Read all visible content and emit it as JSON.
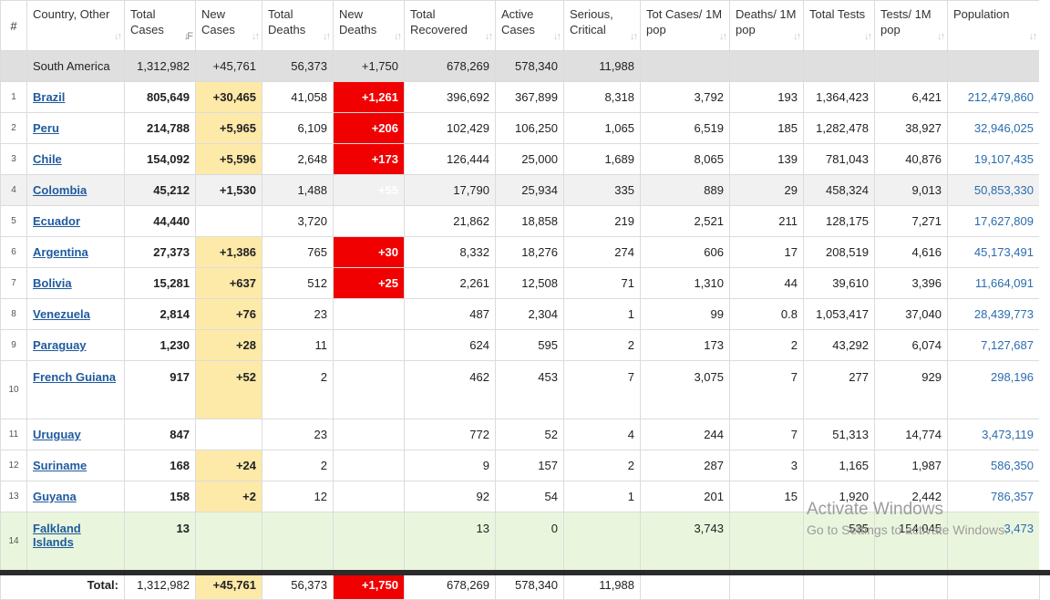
{
  "headers": {
    "idx": "#",
    "country": "Country, Other",
    "total_cases": "Total Cases",
    "new_cases": "New Cases",
    "total_deaths": "Total Deaths",
    "new_deaths": "New Deaths",
    "total_recovered": "Total Recovered",
    "active_cases": "Active Cases",
    "serious": "Serious, Critical",
    "tot_cases_1m": "Tot Cases/ 1M pop",
    "deaths_1m": "Deaths/ 1M pop",
    "total_tests": "Total Tests",
    "tests_1m": "Tests/ 1M pop",
    "population": "Population"
  },
  "region": {
    "name": "South America",
    "total_cases": "1,312,982",
    "new_cases": "+45,761",
    "total_deaths": "56,373",
    "new_deaths": "+1,750",
    "total_recovered": "678,269",
    "active_cases": "578,340",
    "serious": "11,988"
  },
  "rows": [
    {
      "idx": "1",
      "country": "Brazil",
      "total_cases": "805,649",
      "new_cases": "+30,465",
      "total_deaths": "41,058",
      "new_deaths": "+1,261",
      "total_recovered": "396,692",
      "active_cases": "367,899",
      "serious": "8,318",
      "tot_cases_1m": "3,792",
      "deaths_1m": "193",
      "total_tests": "1,364,423",
      "tests_1m": "6,421",
      "population": "212,479,860"
    },
    {
      "idx": "2",
      "country": "Peru",
      "total_cases": "214,788",
      "new_cases": "+5,965",
      "total_deaths": "6,109",
      "new_deaths": "+206",
      "total_recovered": "102,429",
      "active_cases": "106,250",
      "serious": "1,065",
      "tot_cases_1m": "6,519",
      "deaths_1m": "185",
      "total_tests": "1,282,478",
      "tests_1m": "38,927",
      "population": "32,946,025"
    },
    {
      "idx": "3",
      "country": "Chile",
      "total_cases": "154,092",
      "new_cases": "+5,596",
      "total_deaths": "2,648",
      "new_deaths": "+173",
      "total_recovered": "126,444",
      "active_cases": "25,000",
      "serious": "1,689",
      "tot_cases_1m": "8,065",
      "deaths_1m": "139",
      "total_tests": "781,043",
      "tests_1m": "40,876",
      "population": "19,107,435"
    },
    {
      "idx": "4",
      "country": "Colombia",
      "total_cases": "45,212",
      "new_cases": "+1,530",
      "total_deaths": "1,488",
      "new_deaths": "+55",
      "total_recovered": "17,790",
      "active_cases": "25,934",
      "serious": "335",
      "tot_cases_1m": "889",
      "deaths_1m": "29",
      "total_tests": "458,324",
      "tests_1m": "9,013",
      "population": "50,853,330"
    },
    {
      "idx": "5",
      "country": "Ecuador",
      "total_cases": "44,440",
      "new_cases": "",
      "total_deaths": "3,720",
      "new_deaths": "",
      "total_recovered": "21,862",
      "active_cases": "18,858",
      "serious": "219",
      "tot_cases_1m": "2,521",
      "deaths_1m": "211",
      "total_tests": "128,175",
      "tests_1m": "7,271",
      "population": "17,627,809"
    },
    {
      "idx": "6",
      "country": "Argentina",
      "total_cases": "27,373",
      "new_cases": "+1,386",
      "total_deaths": "765",
      "new_deaths": "+30",
      "total_recovered": "8,332",
      "active_cases": "18,276",
      "serious": "274",
      "tot_cases_1m": "606",
      "deaths_1m": "17",
      "total_tests": "208,519",
      "tests_1m": "4,616",
      "population": "45,173,491"
    },
    {
      "idx": "7",
      "country": "Bolivia",
      "total_cases": "15,281",
      "new_cases": "+637",
      "total_deaths": "512",
      "new_deaths": "+25",
      "total_recovered": "2,261",
      "active_cases": "12,508",
      "serious": "71",
      "tot_cases_1m": "1,310",
      "deaths_1m": "44",
      "total_tests": "39,610",
      "tests_1m": "3,396",
      "population": "11,664,091"
    },
    {
      "idx": "8",
      "country": "Venezuela",
      "total_cases": "2,814",
      "new_cases": "+76",
      "total_deaths": "23",
      "new_deaths": "",
      "total_recovered": "487",
      "active_cases": "2,304",
      "serious": "1",
      "tot_cases_1m": "99",
      "deaths_1m": "0.8",
      "total_tests": "1,053,417",
      "tests_1m": "37,040",
      "population": "28,439,773"
    },
    {
      "idx": "9",
      "country": "Paraguay",
      "total_cases": "1,230",
      "new_cases": "+28",
      "total_deaths": "11",
      "new_deaths": "",
      "total_recovered": "624",
      "active_cases": "595",
      "serious": "2",
      "tot_cases_1m": "173",
      "deaths_1m": "2",
      "total_tests": "43,292",
      "tests_1m": "6,074",
      "population": "7,127,687"
    },
    {
      "idx": "10",
      "country": "French Guiana",
      "total_cases": "917",
      "new_cases": "+52",
      "total_deaths": "2",
      "new_deaths": "",
      "total_recovered": "462",
      "active_cases": "453",
      "serious": "7",
      "tot_cases_1m": "3,075",
      "deaths_1m": "7",
      "total_tests": "277",
      "tests_1m": "929",
      "population": "298,196"
    },
    {
      "idx": "11",
      "country": "Uruguay",
      "total_cases": "847",
      "new_cases": "",
      "total_deaths": "23",
      "new_deaths": "",
      "total_recovered": "772",
      "active_cases": "52",
      "serious": "4",
      "tot_cases_1m": "244",
      "deaths_1m": "7",
      "total_tests": "51,313",
      "tests_1m": "14,774",
      "population": "3,473,119"
    },
    {
      "idx": "12",
      "country": "Suriname",
      "total_cases": "168",
      "new_cases": "+24",
      "total_deaths": "2",
      "new_deaths": "",
      "total_recovered": "9",
      "active_cases": "157",
      "serious": "2",
      "tot_cases_1m": "287",
      "deaths_1m": "3",
      "total_tests": "1,165",
      "tests_1m": "1,987",
      "population": "586,350"
    },
    {
      "idx": "13",
      "country": "Guyana",
      "total_cases": "158",
      "new_cases": "+2",
      "total_deaths": "12",
      "new_deaths": "",
      "total_recovered": "92",
      "active_cases": "54",
      "serious": "1",
      "tot_cases_1m": "201",
      "deaths_1m": "15",
      "total_tests": "1,920",
      "tests_1m": "2,442",
      "population": "786,357"
    },
    {
      "idx": "14",
      "country": "Falkland Islands",
      "total_cases": "13",
      "new_cases": "",
      "total_deaths": "",
      "new_deaths": "",
      "total_recovered": "13",
      "active_cases": "0",
      "serious": "",
      "tot_cases_1m": "3,743",
      "deaths_1m": "",
      "total_tests": "535",
      "tests_1m": "154,045",
      "population": "3,473"
    }
  ],
  "totals": {
    "label": "Total:",
    "total_cases": "1,312,982",
    "new_cases": "+45,761",
    "total_deaths": "56,373",
    "new_deaths": "+1,750",
    "total_recovered": "678,269",
    "active_cases": "578,340",
    "serious": "11,988"
  },
  "watermark": {
    "line1": "Activate Windows",
    "line2": "Go to Settings to activate Windows."
  },
  "colors": {
    "new_cases_bg": "#fde9a8",
    "new_deaths_bg": "#f00000",
    "link": "#1f5a9e",
    "region_bg": "#dfdfdf",
    "highlight_row_bg": "#e9f6dd"
  },
  "sort_icon": "sort-arrows-icon"
}
